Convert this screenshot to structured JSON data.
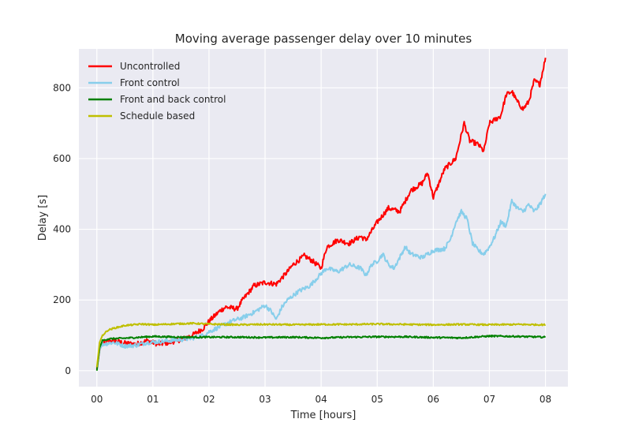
{
  "chart_data": {
    "type": "line",
    "title": "Moving average passenger delay over 10 minutes",
    "xlabel": "Time [hours]",
    "ylabel": "Delay [s]",
    "xlim": [
      -0.32,
      8.4
    ],
    "ylim": [
      -45,
      910
    ],
    "x_ticks": [
      0,
      1,
      2,
      3,
      4,
      5,
      6,
      7,
      8
    ],
    "x_tick_labels": [
      "00",
      "01",
      "02",
      "03",
      "04",
      "05",
      "06",
      "07",
      "08"
    ],
    "y_ticks": [
      0,
      200,
      400,
      600,
      800
    ],
    "y_tick_labels": [
      "0",
      "200",
      "400",
      "600",
      "800"
    ],
    "grid": true,
    "legend_position": "top-left",
    "background": "#eaeaf2",
    "series": [
      {
        "name": "Uncontrolled",
        "color": "#ff0000",
        "x": [
          0,
          0.05,
          0.1,
          0.2,
          0.3,
          0.5,
          0.7,
          0.9,
          1.1,
          1.3,
          1.5,
          1.7,
          1.9,
          2.0,
          2.1,
          2.2,
          2.3,
          2.5,
          2.6,
          2.8,
          3.0,
          3.2,
          3.4,
          3.5,
          3.7,
          3.85,
          4.0,
          4.1,
          4.3,
          4.5,
          4.7,
          4.8,
          5.0,
          5.2,
          5.4,
          5.6,
          5.8,
          5.9,
          6.0,
          6.2,
          6.4,
          6.55,
          6.65,
          6.8,
          6.9,
          7.0,
          7.2,
          7.3,
          7.4,
          7.5,
          7.6,
          7.7,
          7.8,
          7.9,
          8.0
        ],
        "values": [
          5,
          60,
          75,
          82,
          85,
          78,
          75,
          85,
          75,
          80,
          88,
          100,
          120,
          140,
          155,
          170,
          180,
          175,
          200,
          240,
          250,
          245,
          280,
          300,
          325,
          310,
          290,
          350,
          370,
          360,
          380,
          370,
          420,
          460,
          450,
          510,
          530,
          560,
          490,
          570,
          600,
          700,
          650,
          640,
          620,
          700,
          720,
          780,
          790,
          760,
          740,
          760,
          820,
          810,
          885
        ]
      },
      {
        "name": "Front control",
        "color": "#87ceeb",
        "x": [
          0,
          0.05,
          0.1,
          0.3,
          0.5,
          0.7,
          0.9,
          1.1,
          1.3,
          1.5,
          1.7,
          1.9,
          2.0,
          2.2,
          2.4,
          2.6,
          2.8,
          3.0,
          3.1,
          3.2,
          3.3,
          3.4,
          3.6,
          3.8,
          4.0,
          4.1,
          4.3,
          4.5,
          4.7,
          4.8,
          4.9,
          5.0,
          5.1,
          5.2,
          5.3,
          5.5,
          5.6,
          5.8,
          6.0,
          6.2,
          6.3,
          6.4,
          6.5,
          6.6,
          6.7,
          6.8,
          6.9,
          7.0,
          7.1,
          7.2,
          7.3,
          7.4,
          7.5,
          7.6,
          7.7,
          7.8,
          7.9,
          8.0
        ],
        "values": [
          10,
          60,
          75,
          80,
          70,
          72,
          80,
          82,
          85,
          88,
          92,
          100,
          110,
          125,
          140,
          150,
          165,
          185,
          170,
          145,
          180,
          200,
          225,
          240,
          275,
          290,
          280,
          300,
          290,
          270,
          300,
          310,
          330,
          300,
          290,
          350,
          330,
          320,
          340,
          345,
          370,
          420,
          450,
          430,
          360,
          340,
          330,
          350,
          380,
          420,
          410,
          480,
          460,
          450,
          470,
          450,
          470,
          500
        ]
      },
      {
        "name": "Front and back control",
        "color": "#008000",
        "x": [
          0,
          0.05,
          0.1,
          0.2,
          0.5,
          1.0,
          1.5,
          2.0,
          2.5,
          3.0,
          3.5,
          4.0,
          4.5,
          5.0,
          5.5,
          6.0,
          6.5,
          7.0,
          7.5,
          8.0
        ],
        "values": [
          0,
          65,
          85,
          90,
          92,
          97,
          95,
          95,
          95,
          94,
          95,
          93,
          95,
          96,
          96,
          94,
          93,
          98,
          97,
          95
        ]
      },
      {
        "name": "Schedule based",
        "color": "#bfbf00",
        "x": [
          0,
          0.05,
          0.1,
          0.2,
          0.3,
          0.5,
          0.8,
          1.0,
          1.3,
          1.7,
          2.0,
          2.5,
          3.0,
          3.5,
          4.0,
          4.5,
          5.0,
          5.5,
          6.0,
          6.5,
          7.0,
          7.5,
          8.0
        ],
        "values": [
          10,
          80,
          100,
          115,
          120,
          128,
          132,
          130,
          132,
          134,
          132,
          130,
          131,
          130,
          131,
          131,
          132,
          131,
          130,
          131,
          130,
          131,
          130
        ]
      }
    ]
  }
}
